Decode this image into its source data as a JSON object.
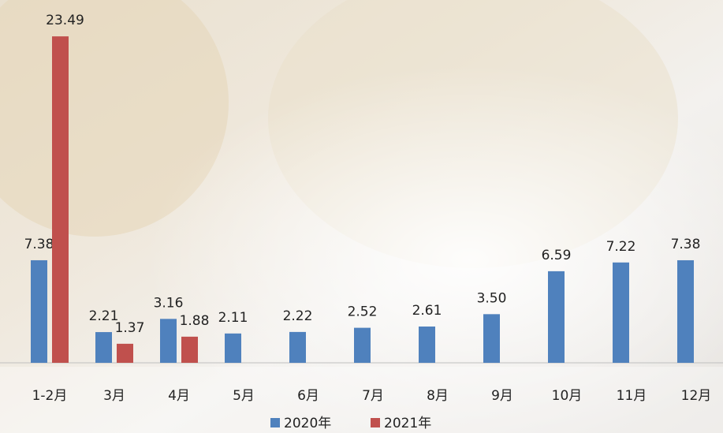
{
  "chart_data": {
    "type": "bar",
    "categories": [
      "1-2月",
      "3月",
      "4月",
      "5月",
      "6月",
      "7月",
      "8月",
      "9月",
      "10月",
      "11月",
      "12月"
    ],
    "series": [
      {
        "name": "2020年",
        "color": "#4f81bd",
        "values": [
          7.38,
          2.21,
          3.16,
          2.11,
          2.22,
          2.52,
          2.61,
          3.5,
          6.59,
          7.22,
          7.38
        ],
        "value_labels": [
          "7.38",
          "2.21",
          "3.16",
          "2.11",
          "2.22",
          "2.52",
          "2.61",
          "3.50",
          "6.59",
          "7.22",
          "7.38"
        ]
      },
      {
        "name": "2021年",
        "color": "#c0504d",
        "values": [
          23.49,
          1.37,
          1.88,
          null,
          null,
          null,
          null,
          null,
          null,
          null,
          null
        ],
        "value_labels": [
          "23.49",
          "1.37",
          "1.88",
          null,
          null,
          null,
          null,
          null,
          null,
          null,
          null
        ]
      }
    ],
    "legend": "bottom"
  }
}
